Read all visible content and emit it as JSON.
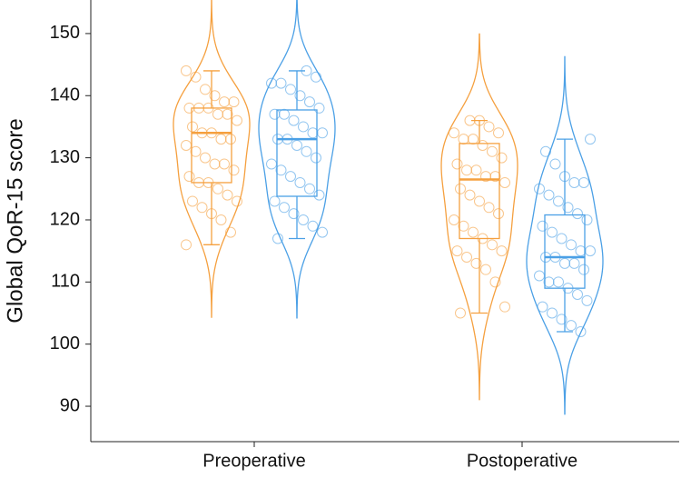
{
  "chart_data": {
    "type": "violin-box",
    "y_label": "Global QoR-15 score",
    "categories": [
      "Preoperative",
      "Postoperative"
    ],
    "ylim": [
      84.3,
      155.4
    ],
    "yticks": [
      90,
      100,
      110,
      120,
      130,
      140,
      150
    ],
    "series": [
      {
        "color": "#f5a03f",
        "boxes": [
          {
            "whislo": 116,
            "q1": 126,
            "median": 134,
            "q3": 138,
            "whishi": 144
          },
          {
            "whislo": 105,
            "q1": 117,
            "median": 126.5,
            "q3": 132.3,
            "whishi": 136
          }
        ],
        "points": [
          [
            144,
            143,
            141,
            140,
            139,
            139,
            138,
            138,
            138,
            137,
            137,
            136,
            135,
            134,
            134,
            133,
            133,
            132,
            131,
            130,
            129,
            129,
            128,
            127,
            126,
            126,
            125,
            124,
            123,
            123,
            122,
            121,
            120,
            118,
            116
          ],
          [
            136,
            136,
            135,
            134,
            134,
            133,
            133,
            132,
            131,
            130,
            129,
            128,
            128,
            127,
            127,
            126,
            125,
            124,
            123,
            122,
            121,
            120,
            119,
            118,
            117,
            116,
            115,
            115,
            114,
            113,
            112,
            110,
            106,
            105
          ]
        ]
      },
      {
        "color": "#4ba0e6",
        "boxes": [
          {
            "whislo": 117,
            "q1": 123.8,
            "median": 133,
            "q3": 137.7,
            "whishi": 144
          },
          {
            "whislo": 102,
            "q1": 109,
            "median": 114,
            "q3": 120.8,
            "whishi": 133
          }
        ],
        "points": [
          [
            144,
            143,
            142,
            142,
            141,
            140,
            139,
            138,
            137,
            137,
            136,
            135,
            134,
            134,
            133,
            133,
            132,
            131,
            130,
            129,
            128,
            127,
            126,
            125,
            124,
            123,
            122,
            121,
            120,
            119,
            118,
            117
          ],
          [
            133,
            131,
            129,
            127,
            126,
            126,
            125,
            124,
            123,
            122,
            121,
            120,
            119,
            118,
            117,
            116,
            115,
            115,
            114,
            114,
            113,
            113,
            112,
            111,
            110,
            110,
            109,
            108,
            107,
            106,
            105,
            104,
            103,
            102
          ]
        ]
      }
    ]
  }
}
